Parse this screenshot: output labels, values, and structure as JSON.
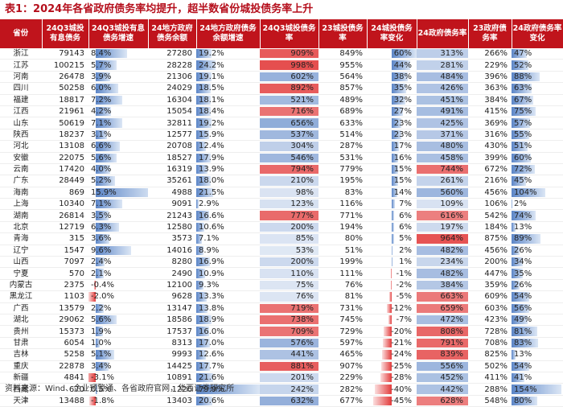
{
  "title": "表1：2024年各省政府债务率均提升，超半数省份城投债务率上升",
  "source": "资料来源：Wind、企业预警通、各省政府官网，华西证券研究所",
  "headers": [
    "省份",
    "24Q3城投有息债务",
    "24Q3城投有息债务增速",
    "24地方政府债务余额",
    "24地方政府债务余额增速",
    "24Q3城投债务率",
    "23城投债务率",
    "24城投债务率变化",
    "24政府债务率",
    "23政府债务率",
    "24政府债务率变化"
  ],
  "rows": [
    {
      "prov": "浙江",
      "debt": "79143",
      "debt_g": "8.4%",
      "gov": "27280",
      "gov_g": "19.2%",
      "cty": "909%",
      "cty23": "849%",
      "cty_chg": "60%",
      "gr": "313%",
      "gr23": "266%",
      "gr_chg": "47%",
      "v": [
        8.4,
        19.2,
        909,
        60,
        313,
        47
      ]
    },
    {
      "prov": "江苏",
      "debt": "100215",
      "debt_g": "5.7%",
      "gov": "28228",
      "gov_g": "24.2%",
      "cty": "998%",
      "cty23": "955%",
      "cty_chg": "44%",
      "gr": "281%",
      "gr23": "229%",
      "gr_chg": "52%",
      "v": [
        5.7,
        24.2,
        998,
        44,
        281,
        52
      ]
    },
    {
      "prov": "河南",
      "debt": "26478",
      "debt_g": "3.9%",
      "gov": "21306",
      "gov_g": "19.1%",
      "cty": "602%",
      "cty23": "564%",
      "cty_chg": "38%",
      "gr": "484%",
      "gr23": "396%",
      "gr_chg": "88%",
      "v": [
        3.9,
        19.1,
        602,
        38,
        484,
        88
      ]
    },
    {
      "prov": "四川",
      "debt": "50258",
      "debt_g": "6.0%",
      "gov": "24029",
      "gov_g": "18.5%",
      "cty": "892%",
      "cty23": "857%",
      "cty_chg": "35%",
      "gr": "426%",
      "gr23": "363%",
      "gr_chg": "63%",
      "v": [
        6.0,
        18.5,
        892,
        35,
        426,
        63
      ]
    },
    {
      "prov": "福建",
      "debt": "18817",
      "debt_g": "7.2%",
      "gov": "16304",
      "gov_g": "18.1%",
      "cty": "521%",
      "cty23": "489%",
      "cty_chg": "32%",
      "gr": "451%",
      "gr23": "384%",
      "gr_chg": "67%",
      "v": [
        7.2,
        18.1,
        521,
        32,
        451,
        67
      ]
    },
    {
      "prov": "江西",
      "debt": "21961",
      "debt_g": "4.2%",
      "gov": "15054",
      "gov_g": "18.4%",
      "cty": "716%",
      "cty23": "689%",
      "cty_chg": "27%",
      "gr": "491%",
      "gr23": "415%",
      "gr_chg": "75%",
      "v": [
        4.2,
        18.4,
        716,
        27,
        491,
        75
      ]
    },
    {
      "prov": "山东",
      "debt": "50619",
      "debt_g": "7.1%",
      "gov": "32811",
      "gov_g": "19.2%",
      "cty": "656%",
      "cty23": "633%",
      "cty_chg": "23%",
      "gr": "425%",
      "gr23": "369%",
      "gr_chg": "57%",
      "v": [
        7.1,
        19.2,
        656,
        23,
        425,
        57
      ]
    },
    {
      "prov": "陕西",
      "debt": "18237",
      "debt_g": "3.1%",
      "gov": "12577",
      "gov_g": "15.9%",
      "cty": "537%",
      "cty23": "514%",
      "cty_chg": "23%",
      "gr": "371%",
      "gr23": "316%",
      "gr_chg": "55%",
      "v": [
        3.1,
        15.9,
        537,
        23,
        371,
        55
      ]
    },
    {
      "prov": "河北",
      "debt": "13108",
      "debt_g": "6.6%",
      "gov": "20708",
      "gov_g": "12.4%",
      "cty": "304%",
      "cty23": "287%",
      "cty_chg": "17%",
      "gr": "480%",
      "gr23": "430%",
      "gr_chg": "51%",
      "v": [
        6.6,
        12.4,
        304,
        17,
        480,
        51
      ]
    },
    {
      "prov": "安徽",
      "debt": "22075",
      "debt_g": "5.6%",
      "gov": "18527",
      "gov_g": "17.9%",
      "cty": "546%",
      "cty23": "531%",
      "cty_chg": "16%",
      "gr": "458%",
      "gr23": "399%",
      "gr_chg": "60%",
      "v": [
        5.6,
        17.9,
        546,
        16,
        458,
        60
      ]
    },
    {
      "prov": "云南",
      "debt": "17420",
      "debt_g": "4.0%",
      "gov": "16319",
      "gov_g": "13.9%",
      "cty": "794%",
      "cty23": "779%",
      "cty_chg": "15%",
      "gr": "744%",
      "gr23": "672%",
      "gr_chg": "72%",
      "v": [
        4.0,
        13.9,
        794,
        15,
        744,
        72
      ]
    },
    {
      "prov": "广东",
      "debt": "28449",
      "debt_g": "5.2%",
      "gov": "35261",
      "gov_g": "18.0%",
      "cty": "210%",
      "cty23": "195%",
      "cty_chg": "15%",
      "gr": "261%",
      "gr23": "216%",
      "gr_chg": "45%",
      "v": [
        5.2,
        18.0,
        210,
        15,
        261,
        45
      ]
    },
    {
      "prov": "海南",
      "debt": "869",
      "debt_g": "15.9%",
      "gov": "4988",
      "gov_g": "21.5%",
      "cty": "98%",
      "cty23": "83%",
      "cty_chg": "14%",
      "gr": "560%",
      "gr23": "456%",
      "gr_chg": "104%",
      "v": [
        15.9,
        21.5,
        98,
        14,
        560,
        104
      ]
    },
    {
      "prov": "上海",
      "debt": "10340",
      "debt_g": "7.1%",
      "gov": "9091",
      "gov_g": "2.9%",
      "cty": "123%",
      "cty23": "116%",
      "cty_chg": "7%",
      "gr": "109%",
      "gr23": "106%",
      "gr_chg": "2%",
      "v": [
        7.1,
        2.9,
        123,
        7,
        109,
        2
      ]
    },
    {
      "prov": "湖南",
      "debt": "26814",
      "debt_g": "3.5%",
      "gov": "21243",
      "gov_g": "16.6%",
      "cty": "777%",
      "cty23": "771%",
      "cty_chg": "6%",
      "gr": "616%",
      "gr23": "542%",
      "gr_chg": "74%",
      "v": [
        3.5,
        16.6,
        777,
        6,
        616,
        74
      ]
    },
    {
      "prov": "北京",
      "debt": "12719",
      "debt_g": "6.3%",
      "gov": "12580",
      "gov_g": "10.6%",
      "cty": "200%",
      "cty23": "194%",
      "cty_chg": "6%",
      "gr": "197%",
      "gr23": "184%",
      "gr_chg": "13%",
      "v": [
        6.3,
        10.6,
        200,
        6,
        197,
        13
      ]
    },
    {
      "prov": "青海",
      "debt": "315",
      "debt_g": "3.6%",
      "gov": "3573",
      "gov_g": "7.1%",
      "cty": "85%",
      "cty23": "80%",
      "cty_chg": "5%",
      "gr": "964%",
      "gr23": "875%",
      "gr_chg": "89%",
      "v": [
        3.6,
        7.1,
        85,
        5,
        964,
        89
      ]
    },
    {
      "prov": "辽宁",
      "debt": "1547",
      "debt_g": "9.6%",
      "gov": "14016",
      "gov_g": "8.9%",
      "cty": "53%",
      "cty23": "51%",
      "cty_chg": "2%",
      "gr": "482%",
      "gr23": "456%",
      "gr_chg": "26%",
      "v": [
        9.6,
        8.9,
        53,
        2,
        482,
        26
      ]
    },
    {
      "prov": "山西",
      "debt": "7097",
      "debt_g": "2.4%",
      "gov": "8280",
      "gov_g": "16.9%",
      "cty": "200%",
      "cty23": "199%",
      "cty_chg": "1%",
      "gr": "234%",
      "gr23": "200%",
      "gr_chg": "34%",
      "v": [
        2.4,
        16.9,
        200,
        1,
        234,
        34
      ]
    },
    {
      "prov": "宁夏",
      "debt": "570",
      "debt_g": "2.1%",
      "gov": "2490",
      "gov_g": "10.9%",
      "cty": "110%",
      "cty23": "111%",
      "cty_chg": "-1%",
      "gr": "482%",
      "gr23": "447%",
      "gr_chg": "35%",
      "v": [
        2.1,
        10.9,
        110,
        -1,
        482,
        35
      ]
    },
    {
      "prov": "内蒙古",
      "debt": "2375",
      "debt_g": "-0.4%",
      "gov": "12100",
      "gov_g": "9.3%",
      "cty": "75%",
      "cty23": "76%",
      "cty_chg": "-2%",
      "gr": "384%",
      "gr23": "359%",
      "gr_chg": "26%",
      "v": [
        -0.4,
        9.3,
        75,
        -2,
        384,
        26
      ]
    },
    {
      "prov": "黑龙江",
      "debt": "1103",
      "debt_g": "-2.0%",
      "gov": "9628",
      "gov_g": "13.3%",
      "cty": "76%",
      "cty23": "81%",
      "cty_chg": "-5%",
      "gr": "663%",
      "gr23": "609%",
      "gr_chg": "54%",
      "v": [
        -2.0,
        13.3,
        76,
        -5,
        663,
        54
      ]
    },
    {
      "prov": "广西",
      "debt": "13579",
      "debt_g": "2.2%",
      "gov": "13147",
      "gov_g": "13.8%",
      "cty": "719%",
      "cty23": "731%",
      "cty_chg": "-12%",
      "gr": "659%",
      "gr23": "603%",
      "gr_chg": "56%",
      "v": [
        2.2,
        13.8,
        719,
        -12,
        659,
        56
      ]
    },
    {
      "prov": "湖北",
      "debt": "29062",
      "debt_g": "5.6%",
      "gov": "18586",
      "gov_g": "18.9%",
      "cty": "738%",
      "cty23": "745%",
      "cty_chg": "-7%",
      "gr": "472%",
      "gr23": "423%",
      "gr_chg": "49%",
      "v": [
        5.6,
        18.9,
        738,
        -7,
        472,
        49
      ]
    },
    {
      "prov": "贵州",
      "debt": "15373",
      "debt_g": "1.9%",
      "gov": "17537",
      "gov_g": "16.0%",
      "cty": "709%",
      "cty23": "729%",
      "cty_chg": "-20%",
      "gr": "808%",
      "gr23": "728%",
      "gr_chg": "81%",
      "v": [
        1.9,
        16.0,
        709,
        -20,
        808,
        81
      ]
    },
    {
      "prov": "甘肃",
      "debt": "6054",
      "debt_g": "1.0%",
      "gov": "8313",
      "gov_g": "17.0%",
      "cty": "576%",
      "cty23": "597%",
      "cty_chg": "-21%",
      "gr": "791%",
      "gr23": "708%",
      "gr_chg": "83%",
      "v": [
        1.0,
        17.0,
        576,
        -21,
        791,
        83
      ]
    },
    {
      "prov": "吉林",
      "debt": "5258",
      "debt_g": "5.1%",
      "gov": "9993",
      "gov_g": "12.6%",
      "cty": "441%",
      "cty23": "465%",
      "cty_chg": "-24%",
      "gr": "839%",
      "gr23": "825%",
      "gr_chg": "13%",
      "v": [
        5.1,
        12.6,
        441,
        -24,
        839,
        13
      ]
    },
    {
      "prov": "重庆",
      "debt": "22878",
      "debt_g": "3.4%",
      "gov": "14425",
      "gov_g": "17.7%",
      "cty": "881%",
      "cty23": "907%",
      "cty_chg": "-25%",
      "gr": "556%",
      "gr23": "502%",
      "gr_chg": "54%",
      "v": [
        3.4,
        17.7,
        881,
        -25,
        556,
        54
      ]
    },
    {
      "prov": "新疆",
      "debt": "4841",
      "debt_g": "-3.1%",
      "gov": "10891",
      "gov_g": "21.6%",
      "cty": "201%",
      "cty23": "229%",
      "cty_chg": "-28%",
      "gr": "452%",
      "gr23": "411%",
      "gr_chg": "41%",
      "v": [
        -3.1,
        21.6,
        201,
        -28,
        452,
        41
      ]
    },
    {
      "prov": "西藏",
      "debt": "670",
      "debt_g": "0.5%",
      "gov": "1226",
      "gov_g": "79.9%",
      "cty": "242%",
      "cty23": "282%",
      "cty_chg": "-40%",
      "gr": "442%",
      "gr23": "288%",
      "gr_chg": "154%",
      "v": [
        0.5,
        79.9,
        242,
        -40,
        442,
        154
      ]
    },
    {
      "prov": "天津",
      "debt": "13488",
      "debt_g": "-1.8%",
      "gov": "13403",
      "gov_g": "20.6%",
      "cty": "632%",
      "cty23": "677%",
      "cty_chg": "-45%",
      "gr": "628%",
      "gr23": "548%",
      "gr_chg": "80%",
      "v": [
        -1.8,
        20.6,
        632,
        -45,
        628,
        80
      ]
    }
  ],
  "colors": {
    "header_bg": "#c0141c",
    "title": "#b50f1c",
    "pos_bar": "#5b85c7",
    "neg_bar": "#e23b3b"
  }
}
